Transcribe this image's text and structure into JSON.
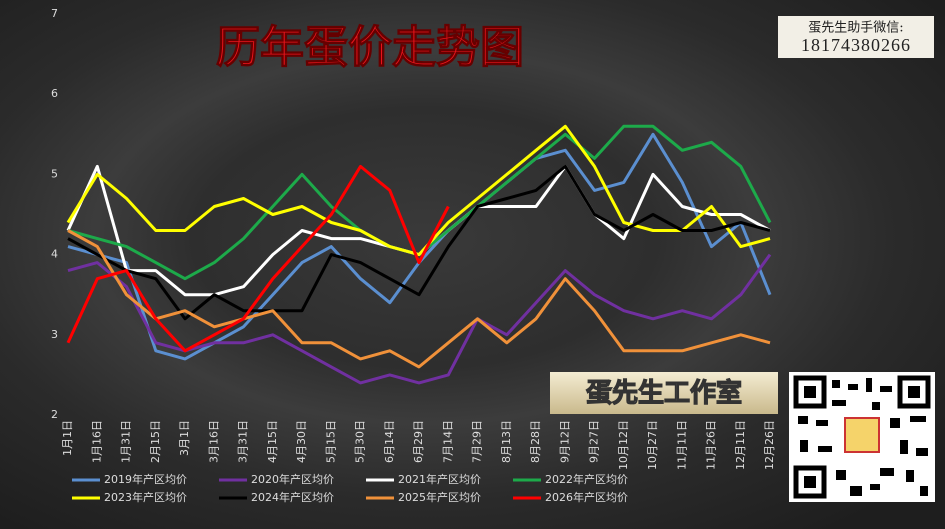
{
  "chart_data": {
    "type": "line",
    "title": "历年蛋价走势图",
    "categories": [
      "1月1日",
      "1月16日",
      "1月31日",
      "2月15日",
      "3月1日",
      "3月16日",
      "3月31日",
      "4月15日",
      "4月30日",
      "5月15日",
      "5月30日",
      "6月14日",
      "6月29日",
      "7月14日",
      "7月29日",
      "8月13日",
      "8月28日",
      "9月12日",
      "9月27日",
      "10月12日",
      "10月27日",
      "11月11日",
      "11月26日",
      "12月11日",
      "12月26日"
    ],
    "series": [
      {
        "name": "2019年产区均价",
        "color": "#5b8fd0",
        "values": [
          4.1,
          4.0,
          3.9,
          2.8,
          2.7,
          2.9,
          3.1,
          3.5,
          3.9,
          4.1,
          3.7,
          3.4,
          3.9,
          4.3,
          4.6,
          4.9,
          5.2,
          5.3,
          4.8,
          4.9,
          5.5,
          4.9,
          4.1,
          4.4,
          3.5
        ]
      },
      {
        "name": "2020年产区均价",
        "color": "#7030a0",
        "values": [
          3.8,
          3.9,
          3.6,
          2.9,
          2.8,
          2.9,
          2.9,
          3.0,
          2.8,
          2.6,
          2.4,
          2.5,
          2.4,
          2.5,
          3.2,
          3.0,
          3.4,
          3.8,
          3.5,
          3.3,
          3.2,
          3.3,
          3.2,
          3.5,
          4.0
        ]
      },
      {
        "name": "2021年产区均价",
        "color": "#ffffff",
        "values": [
          4.3,
          5.1,
          3.8,
          3.8,
          3.5,
          3.5,
          3.6,
          4.0,
          4.3,
          4.2,
          4.2,
          4.1,
          4.0,
          4.3,
          4.6,
          4.6,
          4.6,
          5.1,
          4.5,
          4.2,
          5.0,
          4.6,
          4.5,
          4.5,
          4.3
        ]
      },
      {
        "name": "2022年产区均价",
        "color": "#1daa4a",
        "values": [
          4.3,
          4.2,
          4.1,
          3.9,
          3.7,
          3.9,
          4.2,
          4.6,
          5.0,
          4.6,
          4.3,
          4.1,
          4.0,
          4.3,
          4.6,
          4.9,
          5.2,
          5.5,
          5.2,
          5.6,
          5.6,
          5.3,
          5.4,
          5.1,
          4.4
        ]
      },
      {
        "name": "2023年产区均价",
        "color": "#ffff00",
        "values": [
          4.4,
          5.0,
          4.7,
          4.3,
          4.3,
          4.6,
          4.7,
          4.5,
          4.6,
          4.4,
          4.3,
          4.1,
          4.0,
          4.4,
          4.7,
          5.0,
          5.3,
          5.6,
          5.1,
          4.4,
          4.3,
          4.3,
          4.6,
          4.1,
          4.2
        ]
      },
      {
        "name": "2024年产区均价",
        "color": "#000000",
        "values": [
          4.2,
          4.0,
          3.8,
          3.7,
          3.2,
          3.5,
          3.3,
          3.3,
          3.3,
          4.0,
          3.9,
          3.7,
          3.5,
          4.1,
          4.6,
          4.7,
          4.8,
          5.1,
          4.5,
          4.3,
          4.5,
          4.3,
          4.3,
          4.4,
          4.3
        ]
      },
      {
        "name": "2025年产区均价",
        "color": "#f0913a",
        "values": [
          4.3,
          4.1,
          3.5,
          3.2,
          3.3,
          3.1,
          3.2,
          3.3,
          2.9,
          2.9,
          2.7,
          2.8,
          2.6,
          2.9,
          3.2,
          2.9,
          3.2,
          3.7,
          3.3,
          2.8,
          2.8,
          2.8,
          2.9,
          3.0,
          2.9
        ]
      },
      {
        "name": "2026年产区均价",
        "color": "#ff0000",
        "values": [
          2.9,
          3.7,
          3.8,
          3.2,
          2.8,
          3.0,
          3.2,
          3.7,
          4.1,
          4.5,
          5.1,
          4.8,
          3.9,
          4.6,
          null,
          null,
          null,
          null,
          null,
          null,
          null,
          null,
          null,
          null,
          null
        ]
      }
    ],
    "ylim": [
      2,
      7
    ],
    "yticks": [
      2,
      3,
      4,
      5,
      6,
      7
    ],
    "grid": false
  },
  "contact": {
    "label": "蛋先生助手微信:",
    "phone": "18174380266"
  },
  "studio": "蛋先生工作室"
}
